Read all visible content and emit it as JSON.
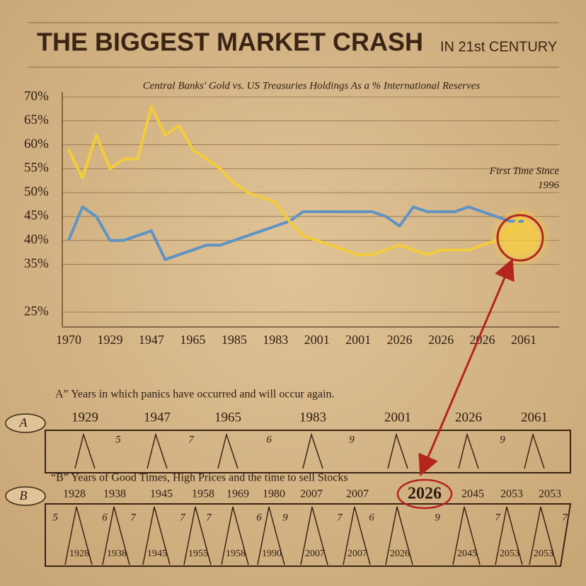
{
  "header": {
    "title": "THE BIGGEST MARKET CRASH",
    "title_suffix": "IN 21st CENTURY"
  },
  "chart_data": {
    "type": "line",
    "subtitle": "Central Banks' Gold vs. US Treasuries Holdings As a % International Reserves",
    "annotation": "First Time Since 1996",
    "categories": [
      "1970",
      null,
      null,
      "1929",
      null,
      null,
      "1947",
      null,
      null,
      "1965",
      null,
      null,
      "1985",
      null,
      null,
      "1983",
      null,
      null,
      "2001",
      null,
      null,
      "2001",
      null,
      null,
      "2026",
      null,
      null,
      "2026",
      null,
      null,
      "2026",
      null,
      null,
      "2061"
    ],
    "series": [
      {
        "color": "#f2cc3c",
        "values": [
          59,
          53,
          62,
          55,
          57,
          57,
          68,
          62,
          64,
          59,
          57,
          55,
          52,
          50,
          49,
          48,
          44,
          41,
          40,
          39,
          38,
          37,
          37,
          38,
          39,
          38,
          37,
          38,
          38,
          38,
          39,
          40,
          42,
          46
        ]
      },
      {
        "color": "#5e93c4",
        "values": [
          40,
          47,
          45,
          40,
          40,
          41,
          42,
          36,
          37,
          38,
          39,
          39,
          40,
          41,
          42,
          43,
          44,
          46,
          46,
          46,
          46,
          46,
          46,
          45,
          43,
          47,
          46,
          46,
          46,
          47,
          46,
          45,
          44,
          44
        ]
      }
    ],
    "ylim": [
      25,
      70
    ],
    "yticks": [
      {
        "value": 70,
        "label": "70%"
      },
      {
        "value": 65,
        "label": "65%"
      },
      {
        "value": 60,
        "label": "60%"
      },
      {
        "value": 55,
        "label": "55%"
      },
      {
        "value": 50,
        "label": "50%"
      },
      {
        "value": 45,
        "label": "45%"
      },
      {
        "value": 40,
        "label": "40%"
      },
      {
        "value": 35,
        "label": "35%"
      },
      {
        "value": 25,
        "label": "25%"
      }
    ],
    "grid": true
  },
  "cycle": {
    "a_caption": "A” Years in which panics have occurred and will occur again.",
    "a_label": "A",
    "a_years": [
      "1929",
      "1947",
      "1965",
      "1983",
      "2001",
      "2026",
      "2061"
    ],
    "a_intervals": [
      "5",
      "7",
      "6",
      "9",
      "9"
    ],
    "b_caption": "“B” Years of Good Times, High Prices and the time to sell Stocks",
    "b_label": "B",
    "b_years": [
      "1928",
      "1938",
      "1945",
      "1958",
      "1969",
      "1980",
      "2007",
      "2007",
      "2026",
      "2045",
      "2053",
      "2053"
    ],
    "b_intervals": [
      "5",
      "6",
      "7",
      "7",
      "7",
      "6",
      "9",
      "7",
      "6",
      "9",
      "7",
      "7"
    ],
    "b_bottom_years": [
      "1928",
      "1938",
      "1945",
      "1955",
      "1958",
      "1990",
      "2007",
      "2007",
      "2026",
      "2045",
      "2053",
      "2053"
    ]
  }
}
